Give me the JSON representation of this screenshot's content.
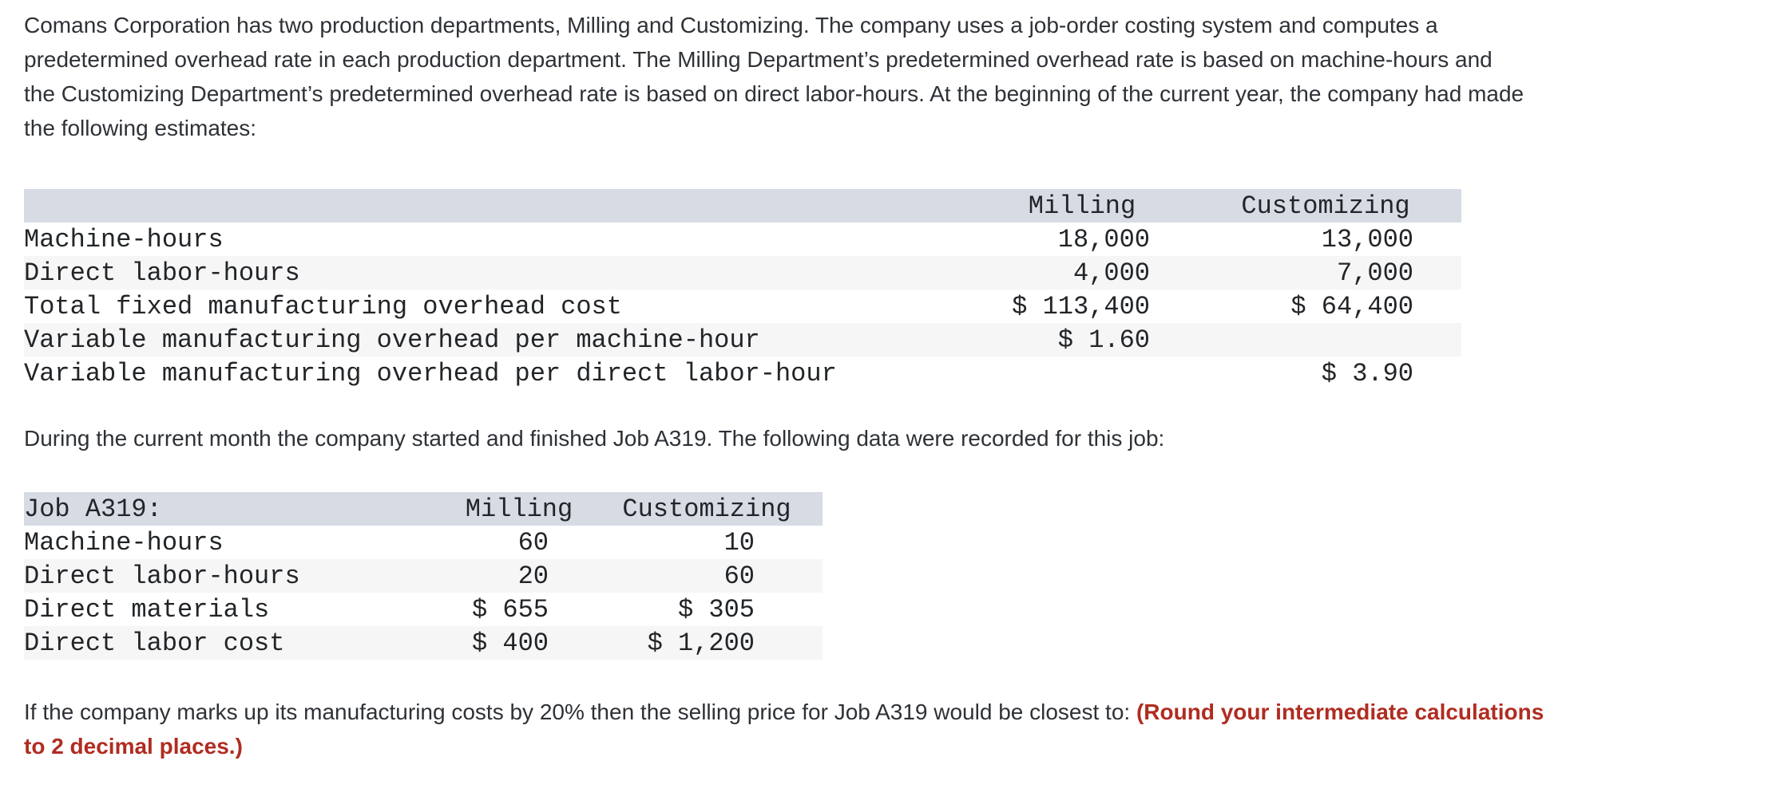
{
  "intro": {
    "lines": [
      "Comans Corporation has two production departments, Milling and Customizing. The company uses a job-order costing system and computes a",
      "predetermined overhead rate in each production department. The Milling Department’s predetermined overhead rate is based on machine-hours and",
      "the Customizing Department’s predetermined overhead rate is based on direct labor-hours. At the beginning of the current year, the company had made",
      "the following estimates:"
    ]
  },
  "estimates_table": {
    "columns": {
      "milling": "Milling",
      "customizing": "Customizing"
    },
    "rows": [
      {
        "label": "Machine-hours",
        "milling": "18,000",
        "customizing": "13,000"
      },
      {
        "label": "Direct labor-hours",
        "milling": "4,000",
        "customizing": "7,000"
      },
      {
        "label": "Total fixed manufacturing overhead cost",
        "milling": "$ 113,400",
        "customizing": "$ 64,400"
      },
      {
        "label": "Variable manufacturing overhead per machine-hour",
        "milling": "$ 1.60",
        "customizing": ""
      },
      {
        "label": "Variable manufacturing overhead per direct labor-hour",
        "milling": "",
        "customizing": "$ 3.90"
      }
    ]
  },
  "job_paragraph": "During the current month the company started and finished Job A319. The following data were recorded for this job:",
  "job_table": {
    "columns": {
      "label": "Job A319:",
      "milling": "Milling",
      "customizing": "Customizing"
    },
    "rows": [
      {
        "label": "Machine-hours",
        "milling": "60",
        "customizing": "10"
      },
      {
        "label": "Direct labor-hours",
        "milling": "20",
        "customizing": "60"
      },
      {
        "label": "Direct materials",
        "milling": "$ 655",
        "customizing": "$ 305"
      },
      {
        "label": "Direct labor cost",
        "milling": "$ 400",
        "customizing": "$ 1,200"
      }
    ]
  },
  "question": {
    "line1_normal": "If the company marks up its manufacturing costs by 20% then the selling price for Job A319 would be closest to: ",
    "line1_emphasis": "(Round your intermediate calculations",
    "line2_emphasis": "to 2 decimal places.)"
  },
  "colors": {
    "header_band": "#d7dbe4",
    "alt_row": "#f6f6f7",
    "emphasis_red": "#b02c21",
    "body_text": "#2e3237"
  }
}
